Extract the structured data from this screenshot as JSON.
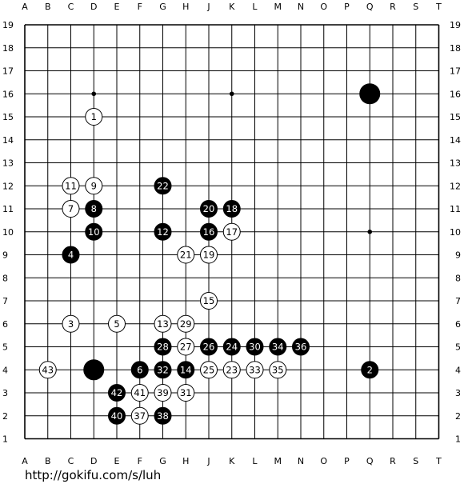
{
  "board": {
    "size": 19,
    "col_labels": [
      "A",
      "B",
      "C",
      "D",
      "E",
      "F",
      "G",
      "H",
      "J",
      "K",
      "L",
      "M",
      "N",
      "O",
      "P",
      "Q",
      "R",
      "S",
      "T"
    ],
    "row_labels": [
      "1",
      "2",
      "3",
      "4",
      "5",
      "6",
      "7",
      "8",
      "9",
      "10",
      "11",
      "12",
      "13",
      "14",
      "15",
      "16",
      "17",
      "18",
      "19"
    ],
    "hoshi": [
      "D4",
      "K4",
      "Q4",
      "D10",
      "K10",
      "Q10",
      "D16",
      "K16",
      "Q16"
    ],
    "colors": {
      "black": "#000000",
      "white": "#ffffff",
      "line": "#000000"
    },
    "stones": [
      {
        "pt": "Q16",
        "color": "black",
        "label": ""
      },
      {
        "pt": "D4",
        "color": "black",
        "label": ""
      },
      {
        "pt": "D15",
        "color": "white",
        "label": "1"
      },
      {
        "pt": "Q4",
        "color": "black",
        "label": "2"
      },
      {
        "pt": "C6",
        "color": "white",
        "label": "3"
      },
      {
        "pt": "C9",
        "color": "black",
        "label": "4"
      },
      {
        "pt": "E6",
        "color": "white",
        "label": "5"
      },
      {
        "pt": "F4",
        "color": "black",
        "label": "6"
      },
      {
        "pt": "C11",
        "color": "white",
        "label": "7"
      },
      {
        "pt": "D11",
        "color": "black",
        "label": "8"
      },
      {
        "pt": "D12",
        "color": "white",
        "label": "9"
      },
      {
        "pt": "D10",
        "color": "black",
        "label": "10"
      },
      {
        "pt": "C12",
        "color": "white",
        "label": "11"
      },
      {
        "pt": "G10",
        "color": "black",
        "label": "12"
      },
      {
        "pt": "G6",
        "color": "white",
        "label": "13"
      },
      {
        "pt": "H4",
        "color": "black",
        "label": "14"
      },
      {
        "pt": "J7",
        "color": "white",
        "label": "15"
      },
      {
        "pt": "J10",
        "color": "black",
        "label": "16"
      },
      {
        "pt": "K10",
        "color": "white",
        "label": "17"
      },
      {
        "pt": "K11",
        "color": "black",
        "label": "18"
      },
      {
        "pt": "J9",
        "color": "white",
        "label": "19"
      },
      {
        "pt": "J11",
        "color": "black",
        "label": "20"
      },
      {
        "pt": "H9",
        "color": "white",
        "label": "21"
      },
      {
        "pt": "G12",
        "color": "black",
        "label": "22"
      },
      {
        "pt": "K4",
        "color": "white",
        "label": "23"
      },
      {
        "pt": "K5",
        "color": "black",
        "label": "24"
      },
      {
        "pt": "J4",
        "color": "white",
        "label": "25"
      },
      {
        "pt": "J5",
        "color": "black",
        "label": "26"
      },
      {
        "pt": "H5",
        "color": "white",
        "label": "27"
      },
      {
        "pt": "G5",
        "color": "black",
        "label": "28"
      },
      {
        "pt": "H6",
        "color": "white",
        "label": "29"
      },
      {
        "pt": "L5",
        "color": "black",
        "label": "30"
      },
      {
        "pt": "H3",
        "color": "white",
        "label": "31"
      },
      {
        "pt": "G4",
        "color": "black",
        "label": "32"
      },
      {
        "pt": "L4",
        "color": "white",
        "label": "33"
      },
      {
        "pt": "M5",
        "color": "black",
        "label": "34"
      },
      {
        "pt": "M4",
        "color": "white",
        "label": "35"
      },
      {
        "pt": "N5",
        "color": "black",
        "label": "36"
      },
      {
        "pt": "F2",
        "color": "white",
        "label": "37"
      },
      {
        "pt": "G2",
        "color": "black",
        "label": "38"
      },
      {
        "pt": "G3",
        "color": "white",
        "label": "39"
      },
      {
        "pt": "E2",
        "color": "black",
        "label": "40"
      },
      {
        "pt": "F3",
        "color": "white",
        "label": "41"
      },
      {
        "pt": "E3",
        "color": "black",
        "label": "42"
      },
      {
        "pt": "B4",
        "color": "white",
        "label": "43"
      }
    ]
  },
  "footer": {
    "url": "http://gokifu.com/s/luh"
  }
}
